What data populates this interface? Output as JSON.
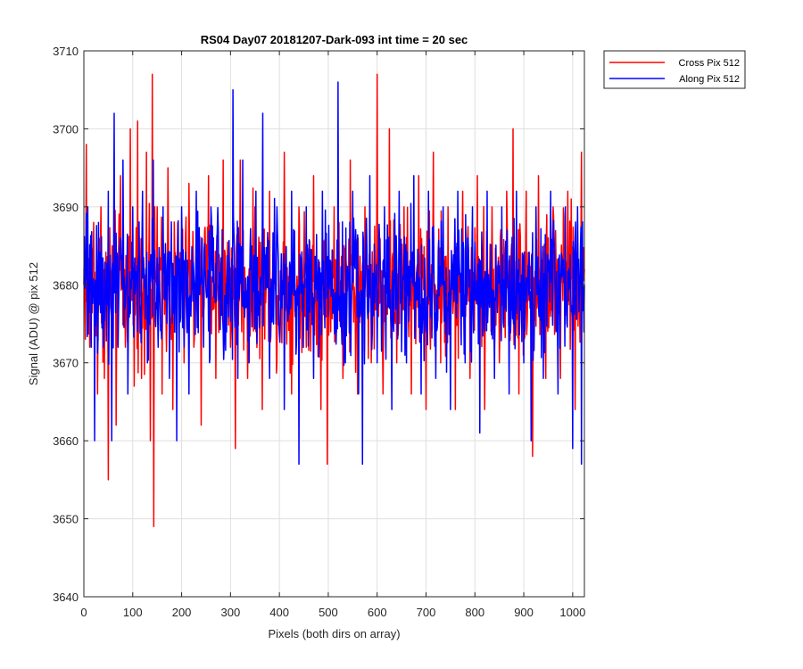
{
  "chart_data": {
    "type": "line",
    "title": "RS04 Day07 20181207-Dark-093 int time = 20 sec",
    "xlabel": "Pixels (both dirs on array)",
    "ylabel": "Signal (ADU) @ pix 512",
    "xlim": [
      0,
      1024
    ],
    "ylim": [
      3640,
      3710
    ],
    "xticks": [
      0,
      100,
      200,
      300,
      400,
      500,
      600,
      700,
      800,
      900,
      1000
    ],
    "yticks": [
      3640,
      3650,
      3660,
      3670,
      3680,
      3690,
      3700,
      3710
    ],
    "grid": true,
    "legend_position": "outside-top-right",
    "series": [
      {
        "name": "Cross Pix 512",
        "color": "#ff0000",
        "mean": 3680,
        "range": [
          3649,
          3707
        ],
        "points": [
          [
            0,
            3682
          ],
          [
            5,
            3698
          ],
          [
            12,
            3672
          ],
          [
            20,
            3688
          ],
          [
            28,
            3666
          ],
          [
            35,
            3690
          ],
          [
            42,
            3668
          ],
          [
            50,
            3655
          ],
          [
            58,
            3685
          ],
          [
            66,
            3662
          ],
          [
            75,
            3694
          ],
          [
            85,
            3672
          ],
          [
            95,
            3700
          ],
          [
            103,
            3667
          ],
          [
            110,
            3701
          ],
          [
            118,
            3668
          ],
          [
            128,
            3697
          ],
          [
            136,
            3660
          ],
          [
            140,
            3707
          ],
          [
            143,
            3649
          ],
          [
            150,
            3690
          ],
          [
            160,
            3666
          ],
          [
            172,
            3695
          ],
          [
            182,
            3664
          ],
          [
            192,
            3688
          ],
          [
            205,
            3670
          ],
          [
            215,
            3693
          ],
          [
            225,
            3672
          ],
          [
            240,
            3662
          ],
          [
            255,
            3694
          ],
          [
            270,
            3668
          ],
          [
            285,
            3696
          ],
          [
            300,
            3672
          ],
          [
            310,
            3659
          ],
          [
            320,
            3696
          ],
          [
            335,
            3668
          ],
          [
            350,
            3690
          ],
          [
            365,
            3664
          ],
          [
            380,
            3692
          ],
          [
            395,
            3670
          ],
          [
            410,
            3697
          ],
          [
            425,
            3666
          ],
          [
            440,
            3690
          ],
          [
            455,
            3672
          ],
          [
            470,
            3694
          ],
          [
            485,
            3664
          ],
          [
            498,
            3657
          ],
          [
            512,
            3690
          ],
          [
            530,
            3668
          ],
          [
            545,
            3696
          ],
          [
            560,
            3666
          ],
          [
            575,
            3690
          ],
          [
            588,
            3670
          ],
          [
            600,
            3707
          ],
          [
            612,
            3666
          ],
          [
            625,
            3700
          ],
          [
            640,
            3670
          ],
          [
            655,
            3690
          ],
          [
            670,
            3666
          ],
          [
            685,
            3694
          ],
          [
            700,
            3664
          ],
          [
            715,
            3697
          ],
          [
            730,
            3670
          ],
          [
            745,
            3690
          ],
          [
            760,
            3664
          ],
          [
            775,
            3692
          ],
          [
            790,
            3668
          ],
          [
            805,
            3694
          ],
          [
            820,
            3664
          ],
          [
            835,
            3690
          ],
          [
            850,
            3670
          ],
          [
            865,
            3692
          ],
          [
            878,
            3700
          ],
          [
            890,
            3666
          ],
          [
            905,
            3692
          ],
          [
            918,
            3658
          ],
          [
            930,
            3694
          ],
          [
            945,
            3668
          ],
          [
            960,
            3690
          ],
          [
            975,
            3668
          ],
          [
            990,
            3692
          ],
          [
            1005,
            3664
          ],
          [
            1018,
            3697
          ],
          [
            1024,
            3682
          ]
        ]
      },
      {
        "name": "Along Pix 512",
        "color": "#0000ff",
        "mean": 3680,
        "range": [
          3657,
          3706
        ],
        "points": [
          [
            0,
            3680
          ],
          [
            8,
            3690
          ],
          [
            15,
            3672
          ],
          [
            22,
            3660
          ],
          [
            30,
            3688
          ],
          [
            40,
            3672
          ],
          [
            50,
            3692
          ],
          [
            57,
            3660
          ],
          [
            62,
            3702
          ],
          [
            70,
            3672
          ],
          [
            80,
            3696
          ],
          [
            90,
            3666
          ],
          [
            100,
            3690
          ],
          [
            110,
            3674
          ],
          [
            120,
            3692
          ],
          [
            130,
            3670
          ],
          [
            142,
            3696
          ],
          [
            152,
            3672
          ],
          [
            162,
            3690
          ],
          [
            175,
            3668
          ],
          [
            190,
            3660
          ],
          [
            200,
            3690
          ],
          [
            215,
            3666
          ],
          [
            230,
            3692
          ],
          [
            245,
            3672
          ],
          [
            260,
            3690
          ],
          [
            268,
            3680
          ],
          [
            305,
            3705
          ],
          [
            315,
            3668
          ],
          [
            325,
            3696
          ],
          [
            338,
            3670
          ],
          [
            352,
            3692
          ],
          [
            366,
            3702
          ],
          [
            380,
            3668
          ],
          [
            395,
            3690
          ],
          [
            410,
            3664
          ],
          [
            425,
            3692
          ],
          [
            440,
            3657
          ],
          [
            455,
            3690
          ],
          [
            470,
            3668
          ],
          [
            488,
            3692
          ],
          [
            500,
            3676
          ],
          [
            520,
            3706
          ],
          [
            535,
            3670
          ],
          [
            550,
            3692
          ],
          [
            562,
            3666
          ],
          [
            570,
            3657
          ],
          [
            585,
            3694
          ],
          [
            600,
            3670
          ],
          [
            615,
            3690
          ],
          [
            630,
            3664
          ],
          [
            645,
            3692
          ],
          [
            660,
            3670
          ],
          [
            675,
            3694
          ],
          [
            690,
            3666
          ],
          [
            705,
            3692
          ],
          [
            720,
            3668
          ],
          [
            735,
            3690
          ],
          [
            750,
            3664
          ],
          [
            765,
            3692
          ],
          [
            780,
            3670
          ],
          [
            795,
            3690
          ],
          [
            810,
            3661
          ],
          [
            825,
            3692
          ],
          [
            840,
            3668
          ],
          [
            855,
            3690
          ],
          [
            870,
            3666
          ],
          [
            885,
            3692
          ],
          [
            900,
            3670
          ],
          [
            915,
            3660
          ],
          [
            925,
            3690
          ],
          [
            940,
            3668
          ],
          [
            955,
            3692
          ],
          [
            970,
            3666
          ],
          [
            985,
            3690
          ],
          [
            1000,
            3659
          ],
          [
            1010,
            3690
          ],
          [
            1018,
            3657
          ],
          [
            1024,
            3680
          ]
        ]
      }
    ]
  }
}
